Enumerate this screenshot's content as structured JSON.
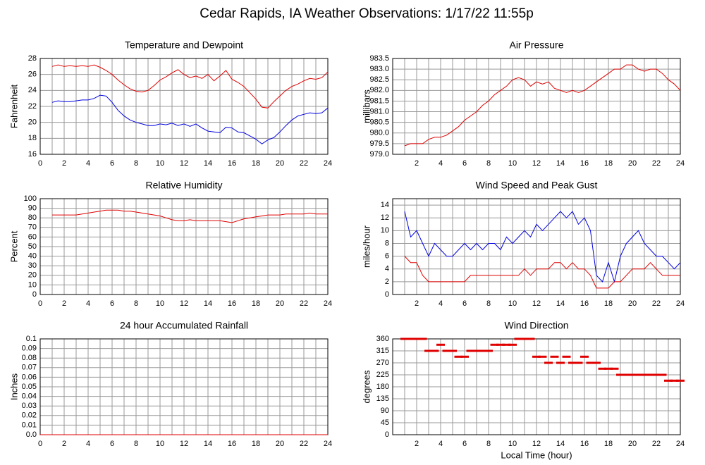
{
  "title": "Cedar Rapids, IA Weather Observations: 1/17/22 11:55p",
  "chart_data": [
    {
      "type": "line",
      "title": "Temperature and Dewpoint",
      "ylabel": "Fahrenheit",
      "x": [
        1,
        1.5,
        2,
        2.5,
        3,
        3.5,
        4,
        4.5,
        5,
        5.5,
        6,
        6.5,
        7,
        7.5,
        8,
        8.5,
        9,
        9.5,
        10,
        10.5,
        11,
        11.5,
        12,
        12.5,
        13,
        13.5,
        14,
        14.5,
        15,
        15.5,
        16,
        16.5,
        17,
        17.5,
        18,
        18.5,
        19,
        19.5,
        20,
        20.5,
        21,
        21.5,
        22,
        22.5,
        23,
        23.5,
        24
      ],
      "series": [
        {
          "color": "#e00000",
          "values": [
            27.0,
            27.2,
            27.0,
            27.1,
            27.0,
            27.1,
            27.0,
            27.2,
            26.9,
            26.5,
            26.0,
            25.3,
            24.7,
            24.2,
            23.9,
            23.8,
            24.0,
            24.6,
            25.3,
            25.7,
            26.2,
            26.6,
            26.0,
            25.6,
            25.8,
            25.5,
            26.0,
            25.2,
            25.8,
            26.5,
            25.4,
            25.0,
            24.5,
            23.7,
            22.9,
            21.9,
            21.8,
            22.6,
            23.3,
            24.0,
            24.5,
            24.8,
            25.2,
            25.5,
            25.4,
            25.6,
            26.3
          ]
        },
        {
          "color": "#0000e0",
          "values": [
            22.5,
            22.7,
            22.6,
            22.6,
            22.7,
            22.8,
            22.8,
            23.0,
            23.4,
            23.3,
            22.5,
            21.5,
            20.8,
            20.3,
            20.0,
            19.8,
            19.6,
            19.6,
            19.8,
            19.7,
            19.9,
            19.6,
            19.8,
            19.5,
            19.8,
            19.3,
            18.9,
            18.8,
            18.7,
            19.4,
            19.3,
            18.8,
            18.7,
            18.3,
            17.9,
            17.3,
            17.8,
            18.1,
            18.8,
            19.6,
            20.3,
            20.8,
            21.0,
            21.2,
            21.1,
            21.2,
            21.8
          ]
        }
      ],
      "xlim": [
        0,
        24
      ],
      "xticks": [
        0,
        2,
        4,
        6,
        8,
        10,
        12,
        14,
        16,
        18,
        20,
        22,
        24
      ],
      "xgrid": [
        0,
        1,
        2,
        3,
        4,
        5,
        6,
        7,
        8,
        9,
        10,
        11,
        12,
        13,
        14,
        15,
        16,
        17,
        18,
        19,
        20,
        21,
        22,
        23,
        24
      ],
      "ylim": [
        16,
        28
      ],
      "yticks": [
        16,
        18,
        20,
        22,
        24,
        26,
        28
      ],
      "grid": true
    },
    {
      "type": "line",
      "title": "Air Pressure",
      "ylabel": "millibars",
      "x": [
        1,
        1.5,
        2,
        2.5,
        3,
        3.5,
        4,
        4.5,
        5,
        5.5,
        6,
        6.5,
        7,
        7.5,
        8,
        8.5,
        9,
        9.5,
        10,
        10.5,
        11,
        11.5,
        12,
        12.5,
        13,
        13.5,
        14,
        14.5,
        15,
        15.5,
        16,
        16.5,
        17,
        17.5,
        18,
        18.5,
        19,
        19.5,
        20,
        20.5,
        21,
        21.5,
        22,
        22.5,
        23,
        23.5,
        24
      ],
      "series": [
        {
          "color": "#e00000",
          "values": [
            979.4,
            979.5,
            979.5,
            979.5,
            979.7,
            979.8,
            979.8,
            979.9,
            980.1,
            980.3,
            980.6,
            980.8,
            981.0,
            981.3,
            981.5,
            981.8,
            982.0,
            982.2,
            982.5,
            982.6,
            982.5,
            982.2,
            982.4,
            982.3,
            982.4,
            982.1,
            982.0,
            981.9,
            982.0,
            981.9,
            982.0,
            982.2,
            982.4,
            982.6,
            982.8,
            983.0,
            983.0,
            983.2,
            983.2,
            983.0,
            982.9,
            983.0,
            983.0,
            982.8,
            982.5,
            982.3,
            982.0
          ]
        }
      ],
      "xlim": [
        0,
        24
      ],
      "xticks": [
        2,
        4,
        6,
        8,
        10,
        12,
        14,
        16,
        18,
        20,
        22,
        24
      ],
      "xgrid": [
        0,
        1,
        2,
        3,
        4,
        5,
        6,
        7,
        8,
        9,
        10,
        11,
        12,
        13,
        14,
        15,
        16,
        17,
        18,
        19,
        20,
        21,
        22,
        23,
        24
      ],
      "ylim": [
        979,
        983.5
      ],
      "yticks": [
        {
          "value": 979,
          "label": "979.0"
        },
        979.5,
        {
          "value": 980,
          "label": "980.0"
        },
        980.5,
        {
          "value": 981,
          "label": "981.0"
        },
        981.5,
        {
          "value": 982,
          "label": "982.0"
        },
        982.5,
        {
          "value": 983,
          "label": "983.0"
        },
        983.5
      ],
      "grid": true
    },
    {
      "type": "line",
      "title": "Relative Humidity",
      "ylabel": "Percent",
      "x": [
        1,
        1.5,
        2,
        2.5,
        3,
        3.5,
        4,
        4.5,
        5,
        5.5,
        6,
        6.5,
        7,
        7.5,
        8,
        8.5,
        9,
        9.5,
        10,
        10.5,
        11,
        11.5,
        12,
        12.5,
        13,
        13.5,
        14,
        14.5,
        15,
        15.5,
        16,
        16.5,
        17,
        17.5,
        18,
        18.5,
        19,
        19.5,
        20,
        20.5,
        21,
        21.5,
        22,
        22.5,
        23,
        23.5,
        24
      ],
      "series": [
        {
          "color": "#e00000",
          "values": [
            83,
            83,
            83,
            83,
            83,
            84,
            85,
            86,
            87,
            88,
            88,
            88,
            87,
            87,
            86,
            85,
            84,
            83,
            82,
            80,
            78,
            77,
            77,
            78,
            77,
            77,
            77,
            77,
            77,
            76,
            75,
            77,
            79,
            80,
            81,
            82,
            83,
            83,
            83,
            84,
            84,
            84,
            84,
            85,
            84,
            84,
            84
          ]
        }
      ],
      "xlim": [
        0,
        24
      ],
      "xticks": [
        0,
        2,
        4,
        6,
        8,
        10,
        12,
        14,
        16,
        18,
        20,
        22,
        24
      ],
      "xgrid": [
        0,
        1,
        2,
        3,
        4,
        5,
        6,
        7,
        8,
        9,
        10,
        11,
        12,
        13,
        14,
        15,
        16,
        17,
        18,
        19,
        20,
        21,
        22,
        23,
        24
      ],
      "ylim": [
        0,
        100
      ],
      "yticks": [
        0,
        10,
        20,
        30,
        40,
        50,
        60,
        70,
        80,
        90,
        100
      ],
      "grid": true
    },
    {
      "type": "line",
      "title": "Wind Speed and Peak Gust",
      "ylabel": "miles/hour",
      "x": [
        1,
        1.5,
        2,
        2.5,
        3,
        3.5,
        4,
        4.5,
        5,
        5.5,
        6,
        6.5,
        7,
        7.5,
        8,
        8.5,
        9,
        9.5,
        10,
        10.5,
        11,
        11.5,
        12,
        12.5,
        13,
        13.5,
        14,
        14.5,
        15,
        15.5,
        16,
        16.5,
        17,
        17.5,
        18,
        18.5,
        19,
        19.5,
        20,
        20.5,
        21,
        21.5,
        22,
        22.5,
        23,
        23.5,
        24
      ],
      "series": [
        {
          "color": "#0000e0",
          "values": [
            13,
            9,
            10,
            8,
            6,
            8,
            7,
            6,
            6,
            7,
            8,
            7,
            8,
            7,
            8,
            8,
            7,
            9,
            8,
            9,
            10,
            9,
            11,
            10,
            11,
            12,
            13,
            12,
            13,
            11,
            12,
            10,
            3,
            2,
            5,
            2,
            6,
            8,
            9,
            10,
            8,
            7,
            6,
            6,
            5,
            4,
            5
          ]
        },
        {
          "color": "#e00000",
          "values": [
            6,
            5,
            5,
            3,
            2,
            2,
            2,
            2,
            2,
            2,
            2,
            3,
            3,
            3,
            3,
            3,
            3,
            3,
            3,
            3,
            4,
            3,
            4,
            4,
            4,
            5,
            5,
            4,
            5,
            4,
            4,
            3,
            1,
            1,
            1,
            2,
            2,
            3,
            4,
            4,
            4,
            5,
            4,
            3,
            3,
            3,
            3
          ]
        }
      ],
      "xlim": [
        0,
        24
      ],
      "xticks": [
        2,
        4,
        6,
        8,
        10,
        12,
        14,
        16,
        18,
        20,
        22,
        24
      ],
      "xgrid": [
        0,
        1,
        2,
        3,
        4,
        5,
        6,
        7,
        8,
        9,
        10,
        11,
        12,
        13,
        14,
        15,
        16,
        17,
        18,
        19,
        20,
        21,
        22,
        23,
        24
      ],
      "ylim": [
        0,
        15
      ],
      "yticks": [
        0,
        2,
        4,
        6,
        8,
        10,
        12,
        14
      ],
      "grid": true
    },
    {
      "type": "line",
      "title": "24 hour Accumulated Rainfall",
      "ylabel": "Inches",
      "x": [
        0,
        24
      ],
      "series": [
        {
          "color": "#e00000",
          "values": [
            0,
            0
          ]
        }
      ],
      "xlim": [
        0,
        24
      ],
      "xticks": [
        0,
        2,
        4,
        6,
        8,
        10,
        12,
        14,
        16,
        18,
        20,
        22,
        24
      ],
      "xgrid": [
        0,
        1,
        2,
        3,
        4,
        5,
        6,
        7,
        8,
        9,
        10,
        11,
        12,
        13,
        14,
        15,
        16,
        17,
        18,
        19,
        20,
        21,
        22,
        23,
        24
      ],
      "ylim": [
        0,
        0.1
      ],
      "yticks": [
        {
          "value": 0,
          "label": "0.0"
        },
        0.01,
        0.02,
        0.03,
        0.04,
        0.05,
        0.06,
        0.07,
        0.08,
        0.09,
        0.1
      ],
      "grid": true
    },
    {
      "type": "scatter",
      "title": "Wind Direction",
      "ylabel": "degrees",
      "xlabel": "Local Time (hour)",
      "x": [
        1,
        1.5,
        2,
        2.5,
        3,
        3.5,
        4,
        4.5,
        5,
        5.5,
        6,
        6.5,
        7,
        7.5,
        8,
        8.5,
        9,
        9.5,
        10,
        10.5,
        11,
        11.5,
        12,
        12.5,
        13,
        13.5,
        14,
        14.5,
        15,
        15.5,
        16,
        16.5,
        17,
        17.5,
        18,
        18.5,
        19,
        19.5,
        20,
        20.5,
        21,
        21.5,
        22,
        22.5,
        23,
        23.5,
        24
      ],
      "series": [
        {
          "color": "#e00000",
          "values": [
            360,
            360,
            360,
            360,
            315,
            315,
            338,
            315,
            315,
            293,
            293,
            315,
            315,
            315,
            315,
            338,
            338,
            338,
            338,
            360,
            360,
            360,
            293,
            293,
            270,
            293,
            270,
            293,
            270,
            270,
            293,
            270,
            270,
            248,
            248,
            248,
            225,
            225,
            225,
            225,
            225,
            225,
            225,
            225,
            203,
            203,
            203
          ]
        }
      ],
      "xlim": [
        0,
        24
      ],
      "xticks": [
        2,
        4,
        6,
        8,
        10,
        12,
        14,
        16,
        18,
        20,
        22,
        24
      ],
      "xgrid": [
        0,
        1,
        2,
        3,
        4,
        5,
        6,
        7,
        8,
        9,
        10,
        11,
        12,
        13,
        14,
        15,
        16,
        17,
        18,
        19,
        20,
        21,
        22,
        23,
        24
      ],
      "ylim": [
        0,
        360
      ],
      "yticks": [
        0,
        45,
        90,
        135,
        180,
        225,
        270,
        315,
        360
      ],
      "grid": true
    }
  ]
}
